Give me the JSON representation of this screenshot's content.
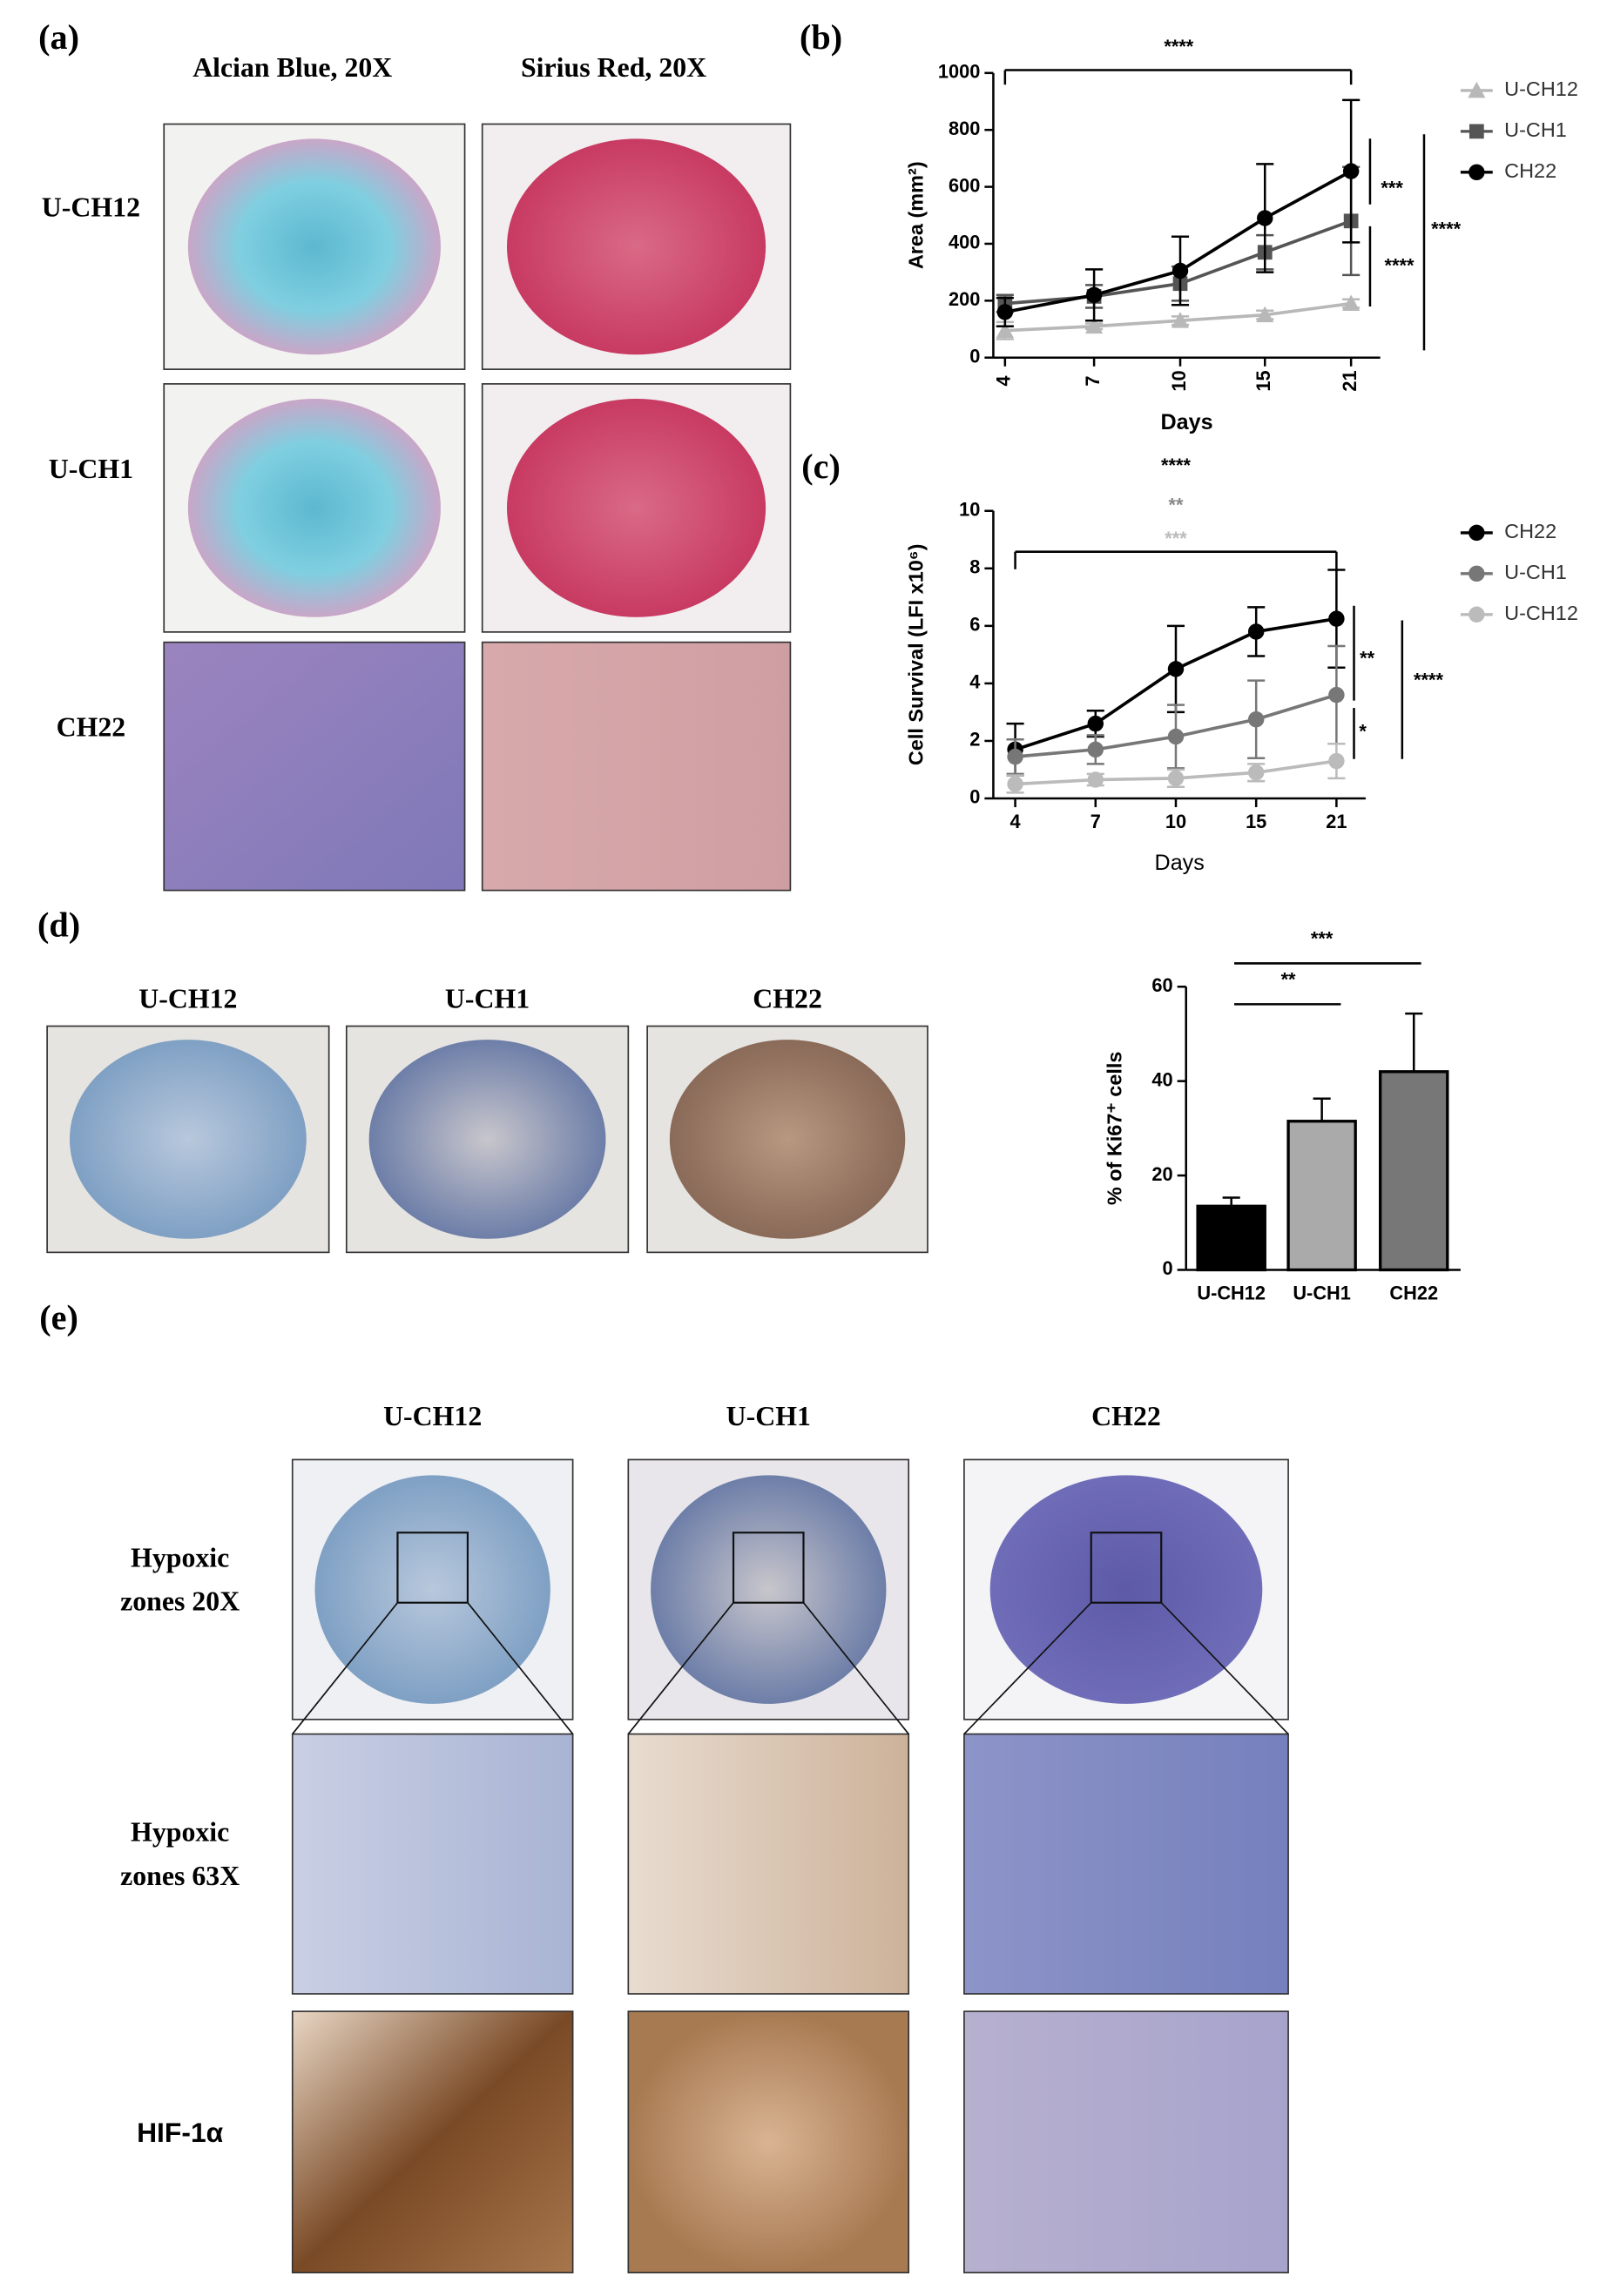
{
  "panel_a": {
    "label": "(a)",
    "columns": [
      "Alcian Blue, 20X",
      "Sirius Red, 20X"
    ],
    "rows": [
      "U-CH12",
      "U-CH1",
      "CH22"
    ]
  },
  "panel_d": {
    "label": "(d)",
    "columns": [
      "U-CH12",
      "U-CH1",
      "CH22"
    ]
  },
  "panel_e": {
    "label": "(e)",
    "columns": [
      "U-CH12",
      "U-CH1",
      "CH22"
    ],
    "rows": [
      [
        "Hypoxic",
        "zones 20X"
      ],
      [
        "Hypoxic",
        "zones 63X"
      ],
      [
        "HIF-1α"
      ]
    ]
  },
  "chart_data": [
    {
      "type": "line",
      "label": "(b)",
      "x_label": "Days",
      "y_label": "Area (mm²)",
      "categories": [
        "4",
        "7",
        "10",
        "15",
        "21"
      ],
      "ylim": [
        0,
        1000
      ],
      "yticks": [
        0,
        200,
        400,
        600,
        800,
        1000
      ],
      "series": [
        {
          "name": "U-CH12",
          "color": "#b8b8b8",
          "marker": "triangle",
          "values": [
            95,
            110,
            130,
            150,
            190
          ],
          "errors": [
            30,
            10,
            15,
            15,
            15
          ]
        },
        {
          "name": "U-CH1",
          "color": "#555555",
          "marker": "square",
          "values": [
            190,
            215,
            260,
            370,
            480
          ],
          "errors": [
            30,
            40,
            60,
            60,
            190
          ]
        },
        {
          "name": "CH22",
          "color": "#000000",
          "marker": "circle",
          "values": [
            160,
            220,
            305,
            490,
            655
          ],
          "errors": [
            50,
            90,
            120,
            190,
            250
          ]
        }
      ],
      "annotations": [
        {
          "text": "****",
          "color": "#000000"
        },
        {
          "text": "***",
          "color": "#000000"
        },
        {
          "text": "****",
          "color": "#000000"
        },
        {
          "text": "****",
          "color": "#000000"
        }
      ]
    },
    {
      "type": "line",
      "label": "(c)",
      "x_label": "Days",
      "y_label": "Cell Survival (LFI x10⁶)",
      "categories": [
        "4",
        "7",
        "10",
        "15",
        "21"
      ],
      "ylim": [
        0,
        10
      ],
      "yticks": [
        0,
        2,
        4,
        6,
        8,
        10
      ],
      "series": [
        {
          "name": "CH22",
          "color": "#000000",
          "marker": "circle",
          "values": [
            1.7,
            2.6,
            4.5,
            5.8,
            6.25
          ],
          "errors": [
            0.9,
            0.45,
            1.5,
            0.85,
            1.7
          ]
        },
        {
          "name": "U-CH1",
          "color": "#777777",
          "marker": "circle",
          "values": [
            1.45,
            1.7,
            2.15,
            2.75,
            3.6
          ],
          "errors": [
            0.6,
            0.5,
            1.1,
            1.35,
            1.7
          ]
        },
        {
          "name": "U-CH12",
          "color": "#bbbbbb",
          "marker": "circle",
          "values": [
            0.5,
            0.65,
            0.7,
            0.9,
            1.3
          ],
          "errors": [
            0.3,
            0.2,
            0.3,
            0.3,
            0.6
          ]
        }
      ],
      "annotations": [
        {
          "text": "****",
          "color": "#000000"
        },
        {
          "text": "**",
          "color": "#888888"
        },
        {
          "text": "***",
          "color": "#bbbbbb"
        },
        {
          "text": "**",
          "color": "#000000"
        },
        {
          "text": "*",
          "color": "#000000"
        },
        {
          "text": "****",
          "color": "#000000"
        }
      ]
    },
    {
      "type": "bar",
      "y_label": "% of Ki67⁺ cells",
      "categories": [
        "U-CH12",
        "U-CH1",
        "CH22"
      ],
      "values": [
        13.5,
        31.5,
        42
      ],
      "errors": [
        1.8,
        4.8,
        12.3
      ],
      "colors": [
        "#000000",
        "#aaaaaa",
        "#777777"
      ],
      "ylim": [
        0,
        60
      ],
      "yticks": [
        0,
        20,
        40,
        60
      ],
      "annotations": [
        {
          "text": "**",
          "color": "#000000"
        },
        {
          "text": "***",
          "color": "#000000"
        }
      ]
    }
  ]
}
